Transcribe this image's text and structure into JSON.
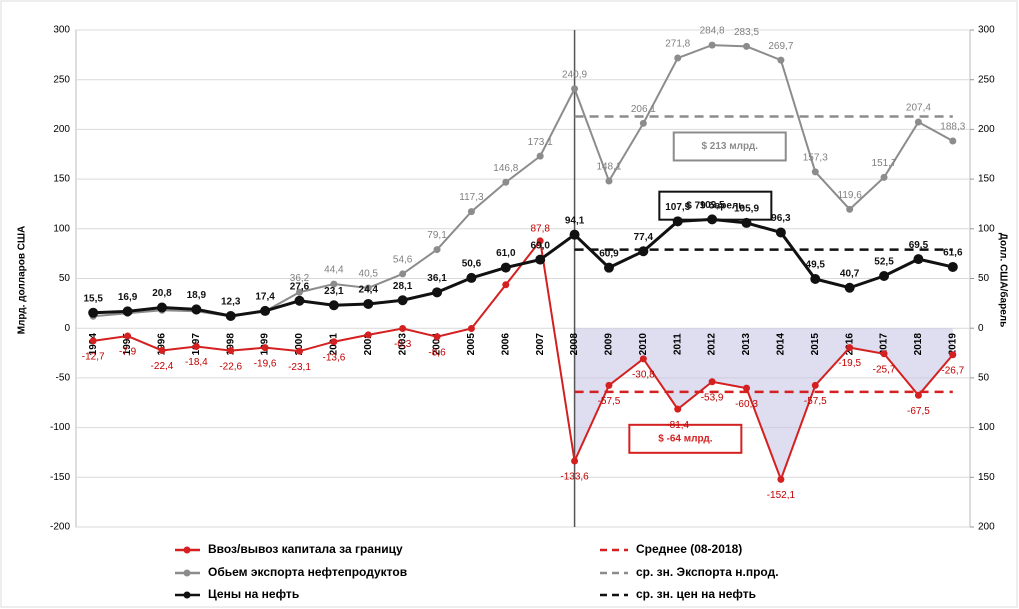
{
  "chart_data": {
    "type": "line",
    "categories": [
      "1994",
      "1995",
      "1996",
      "1997",
      "1998",
      "1999",
      "2000",
      "2001",
      "2002",
      "2003",
      "2004",
      "2005",
      "2006",
      "2007",
      "2008",
      "2009",
      "2010",
      "2011",
      "2012",
      "2013",
      "2014",
      "2015",
      "2016",
      "2017",
      "2018",
      "2019"
    ],
    "ylabel": "Млрд. долларов США",
    "y2label": "Долл. США/барель",
    "ylim": [
      -200,
      300
    ],
    "yticks": [
      -200,
      -150,
      -100,
      -50,
      0,
      50,
      100,
      150,
      200,
      250,
      300
    ],
    "y2lim": [
      -200,
      300
    ],
    "y2ticks": [
      {
        "value": -200,
        "label": "200"
      },
      {
        "value": -150,
        "label": "150"
      },
      {
        "value": -100,
        "label": "100"
      },
      {
        "value": -50,
        "label": "50"
      },
      0,
      50,
      100,
      150,
      200,
      250,
      300
    ],
    "series": [
      {
        "name": "Ввоз/вывоз капитала за границу",
        "color": "#d42020",
        "values": [
          -12.7,
          -7.9,
          -22.4,
          -18.4,
          -22.6,
          -19.6,
          -23.1,
          -13.6,
          -6.7,
          -0.3,
          -8.6,
          -0.3,
          43.7,
          87.8,
          -133.6,
          -57.5,
          -30.8,
          -81.4,
          -53.9,
          -60.3,
          -152.1,
          -57.5,
          -19.5,
          -25.7,
          -67.5,
          -26.7
        ],
        "value_labels": [
          "-12,7",
          "-7,9",
          "-22,4",
          "-18,4",
          "-22,6",
          "-19,6",
          "-23,1",
          "-13,6",
          null,
          "-0,3",
          "-8,6",
          null,
          null,
          "87,8",
          "-133,6",
          "-57,5",
          "-30,8",
          "-81,4",
          "-53,9",
          "-60,3",
          "-152,1",
          "-57,5",
          "-19,5",
          "-25,7",
          "-67,5",
          "-26,7"
        ]
      },
      {
        "name": "Обьем экспорта нефтепродуктов",
        "color": "#8c8c8c",
        "values": [
          12,
          15,
          18,
          17,
          12,
          17,
          36.2,
          44.4,
          40.5,
          54.6,
          79.1,
          117.3,
          146.8,
          173.1,
          240.9,
          148.1,
          206.1,
          271.8,
          284.8,
          283.5,
          269.7,
          157.3,
          119.6,
          151.7,
          207.4,
          188.3
        ],
        "value_labels": [
          null,
          null,
          null,
          null,
          null,
          null,
          "36,2",
          "44,4",
          "40,5",
          "54,6",
          "79,1",
          "117,3",
          "146,8",
          "173,1",
          "240,9",
          "148,1",
          "206,1",
          "271,8",
          "284,8",
          "283,5",
          "269,7",
          "157,3",
          "119,6",
          "151,7",
          "207,4",
          "188,3"
        ]
      },
      {
        "name": "Цены на нефть",
        "color": "#111111",
        "axis": "y2",
        "values": [
          15.5,
          16.9,
          20.8,
          18.9,
          12.3,
          17.4,
          27.6,
          23.1,
          24.4,
          28.1,
          36.1,
          50.6,
          61.0,
          69.0,
          94.1,
          60.9,
          77.4,
          107.5,
          109.5,
          105.9,
          96.3,
          49.5,
          40.7,
          52.5,
          69.5,
          61.6
        ],
        "value_labels": [
          "15,5",
          "16,9",
          "20,8",
          "18,9",
          "12,3",
          "17,4",
          "27,6",
          "23,1",
          "24,4",
          "28,1",
          "36,1",
          "50,6",
          "61,0",
          "69,0",
          "94,1",
          "60,9",
          "77,4",
          "107,5",
          "109,5",
          "105,9",
          "96,3",
          "49,5",
          "40,7",
          "52,5",
          "69,5",
          "61,6"
        ]
      }
    ],
    "reference_lines": [
      {
        "name": "Среднее (08-2018)",
        "value": -64,
        "color": "#d42020",
        "label": "$ -64 млрд."
      },
      {
        "name": "ср. зн. Экспорта н.прод.",
        "value": 213,
        "color": "#8c8c8c",
        "label": "$ 213 млрд."
      },
      {
        "name": "ср. зн. цен на нефть",
        "value": 79,
        "color": "#111111",
        "label": "$ 79  барель"
      }
    ]
  }
}
